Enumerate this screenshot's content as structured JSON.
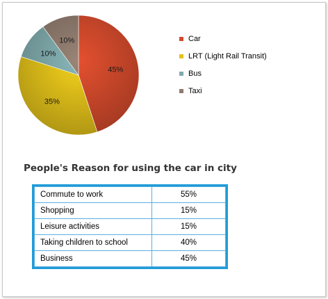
{
  "chart_data": [
    {
      "type": "pie",
      "title": "",
      "legend_position": "right",
      "slices": [
        {
          "label": "Car",
          "value": 45,
          "value_label": "45%",
          "color": "#d34a2c"
        },
        {
          "label": "LRT (Light Rail Transit)",
          "value": 35,
          "value_label": "35%",
          "color": "#e3c21a"
        },
        {
          "label": "Bus",
          "value": 10,
          "value_label": "10%",
          "color": "#7fa9ab"
        },
        {
          "label": "Taxi",
          "value": 10,
          "value_label": "10%",
          "color": "#8f7b6e"
        }
      ]
    },
    {
      "type": "table",
      "title": "People's Reason for using the car in city",
      "rows": [
        {
          "reason": "Commute to work",
          "percent": "55%"
        },
        {
          "reason": "Shopping",
          "percent": "15%"
        },
        {
          "reason": "Leisure activities",
          "percent": "15%"
        },
        {
          "reason": "Taking children to school",
          "percent": "40%"
        },
        {
          "reason": "Business",
          "percent": "45%"
        }
      ],
      "border_color": "#1f9cd8"
    }
  ]
}
